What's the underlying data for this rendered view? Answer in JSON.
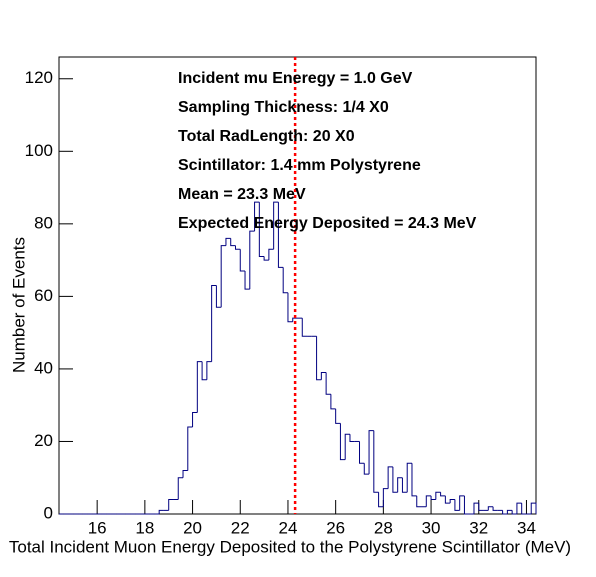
{
  "chart_data": {
    "type": "histogram",
    "xlabel": "Total Incident Muon Energy Deposited to the Polystyrene Scintillator (MeV)",
    "ylabel": "Number of Events",
    "annotations": [
      "Incident mu Eneregy = 1.0 GeV",
      "Sampling Thickness: 1/4 X0",
      "Total RadLength: 20 X0",
      "Scintillator: 1.4 mm Polystyrene",
      "Mean = 23.3 MeV",
      "Expected Energy Deposited = 24.3 MeV"
    ],
    "color": "#000080",
    "reference_line": {
      "x": 24.3,
      "color": "#ff0000"
    },
    "bins": [
      14.4,
      14.6,
      14.8,
      15.0,
      15.2,
      15.4,
      15.6,
      15.8,
      16.0,
      16.2,
      16.4,
      16.6,
      16.8,
      17.0,
      17.2,
      17.4,
      17.6,
      17.8,
      18.0,
      18.2,
      18.4,
      18.6,
      18.8,
      19.0,
      19.2,
      19.4,
      19.6,
      19.8,
      20.0,
      20.2,
      20.4,
      20.6,
      20.8,
      21.0,
      21.2,
      21.4,
      21.6,
      21.8,
      22.0,
      22.2,
      22.4,
      22.6,
      22.8,
      23.0,
      23.2,
      23.4,
      23.6,
      23.8,
      24.0,
      24.2,
      24.4,
      24.6,
      24.8,
      25.0,
      25.2,
      25.4,
      25.6,
      25.8,
      26.0,
      26.2,
      26.4,
      26.6,
      26.8,
      27.0,
      27.2,
      27.4,
      27.6,
      27.8,
      28.0,
      28.2,
      28.4,
      28.6,
      28.8,
      29.0,
      29.2,
      29.4,
      29.6,
      29.8,
      30.0,
      30.2,
      30.4,
      30.6,
      30.8,
      31.0,
      31.2,
      31.4,
      31.6,
      31.8,
      32.0,
      32.2,
      32.4,
      32.6,
      32.8,
      33.0,
      33.2,
      33.4,
      33.6,
      33.8,
      34.0,
      34.2,
      34.4
    ],
    "values": [
      0,
      0,
      0,
      0,
      0,
      0,
      0,
      0,
      0,
      0,
      0,
      0,
      0,
      0,
      0,
      0,
      0,
      0,
      0,
      0,
      0,
      1,
      1,
      4,
      4,
      10,
      12,
      24,
      28,
      42,
      37,
      42,
      63,
      57,
      74,
      76,
      74,
      73,
      67,
      62,
      78,
      86,
      71,
      70,
      73,
      86,
      68,
      61,
      53,
      54,
      54,
      49,
      49,
      49,
      37,
      39,
      33,
      29,
      25,
      15,
      22,
      20,
      20,
      14,
      11,
      23,
      6,
      2,
      7,
      13,
      6,
      10,
      6,
      14,
      5,
      2,
      2,
      5,
      4,
      6,
      5,
      3,
      4,
      1,
      5,
      0,
      0,
      3,
      1,
      1,
      2,
      1,
      1,
      0,
      1,
      0,
      3,
      0,
      0,
      3
    ],
    "xlim": [
      14.4,
      34.4
    ],
    "ylim": [
      0,
      126
    ],
    "xticks": [
      16,
      18,
      20,
      22,
      24,
      26,
      28,
      30,
      32,
      34
    ],
    "yticks": [
      0,
      20,
      40,
      60,
      80,
      100,
      120
    ]
  }
}
